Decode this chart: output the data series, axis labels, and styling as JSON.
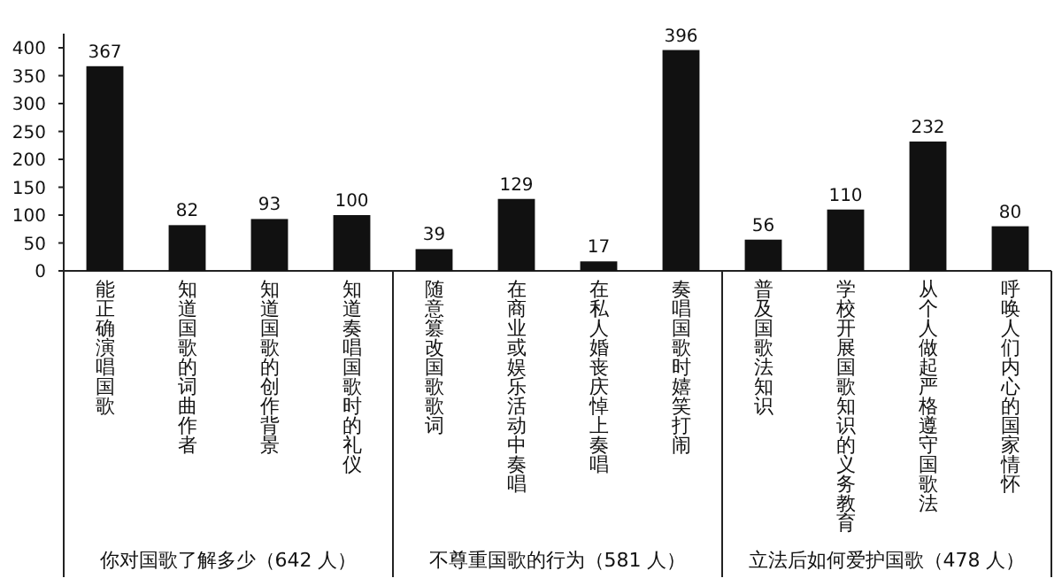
{
  "chart_data": {
    "type": "bar",
    "color": "#111111",
    "grid": false,
    "data_labels": true,
    "categories": [
      "能正确演唱国歌",
      "知道国歌的词曲作者",
      "知道国歌的创作背景",
      "知道奏唱国歌时的礼仪",
      "随意篡改国歌歌词",
      "在商业或娱乐活动中奏唱",
      "在私人婚丧庆悼上奏唱",
      "奏唱国歌时嬉笑打闹",
      "普及国歌法知识",
      "学校开展国歌知识的义务教育",
      "从个人做起严格遵守国歌法",
      "呼唤人们内心的国家情怀"
    ],
    "values": [
      367,
      82,
      93,
      100,
      39,
      129,
      17,
      396,
      56,
      110,
      232,
      80
    ],
    "ylim": [
      0,
      400
    ],
    "yticks": [
      0,
      50,
      100,
      150,
      200,
      250,
      300,
      350,
      400
    ],
    "annotations": [
      "你对国歌了解多少（642 人）",
      "不尊重国歌的行为（581 人）",
      "立法后如何爱护国歌（478 人）"
    ]
  }
}
